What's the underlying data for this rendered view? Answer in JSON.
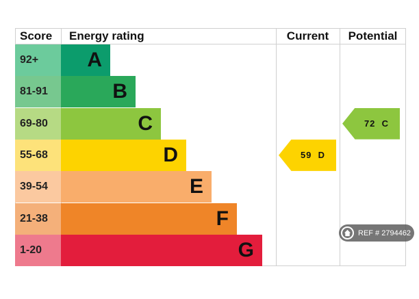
{
  "headers": {
    "score": "Score",
    "energy_rating": "Energy rating",
    "current": "Current",
    "potential": "Potential"
  },
  "chart_data": {
    "type": "epc",
    "bands": [
      {
        "letter": "A",
        "range": "92+",
        "color": "#0c9c6c",
        "score_color": "#6ccb9c"
      },
      {
        "letter": "B",
        "range": "81-91",
        "color": "#2aa85a",
        "score_color": "#77c88f"
      },
      {
        "letter": "C",
        "range": "69-80",
        "color": "#8dc63f",
        "score_color": "#b6da84"
      },
      {
        "letter": "D",
        "range": "55-68",
        "color": "#fdd300",
        "score_color": "#fde27a"
      },
      {
        "letter": "E",
        "range": "39-54",
        "color": "#f9ad6b",
        "score_color": "#fbc9a0"
      },
      {
        "letter": "F",
        "range": "21-38",
        "color": "#ef8528",
        "score_color": "#f4b07a"
      },
      {
        "letter": "G",
        "range": "1-20",
        "color": "#e31d3c",
        "score_color": "#ee7a8d"
      }
    ],
    "current": {
      "value": 59,
      "band": "D",
      "label": "59  D",
      "color": "#fdd300"
    },
    "potential": {
      "value": 72,
      "band": "C",
      "label": "72  C",
      "color": "#8dc63f"
    }
  },
  "watermark": {
    "text": "REF # 2794462"
  }
}
